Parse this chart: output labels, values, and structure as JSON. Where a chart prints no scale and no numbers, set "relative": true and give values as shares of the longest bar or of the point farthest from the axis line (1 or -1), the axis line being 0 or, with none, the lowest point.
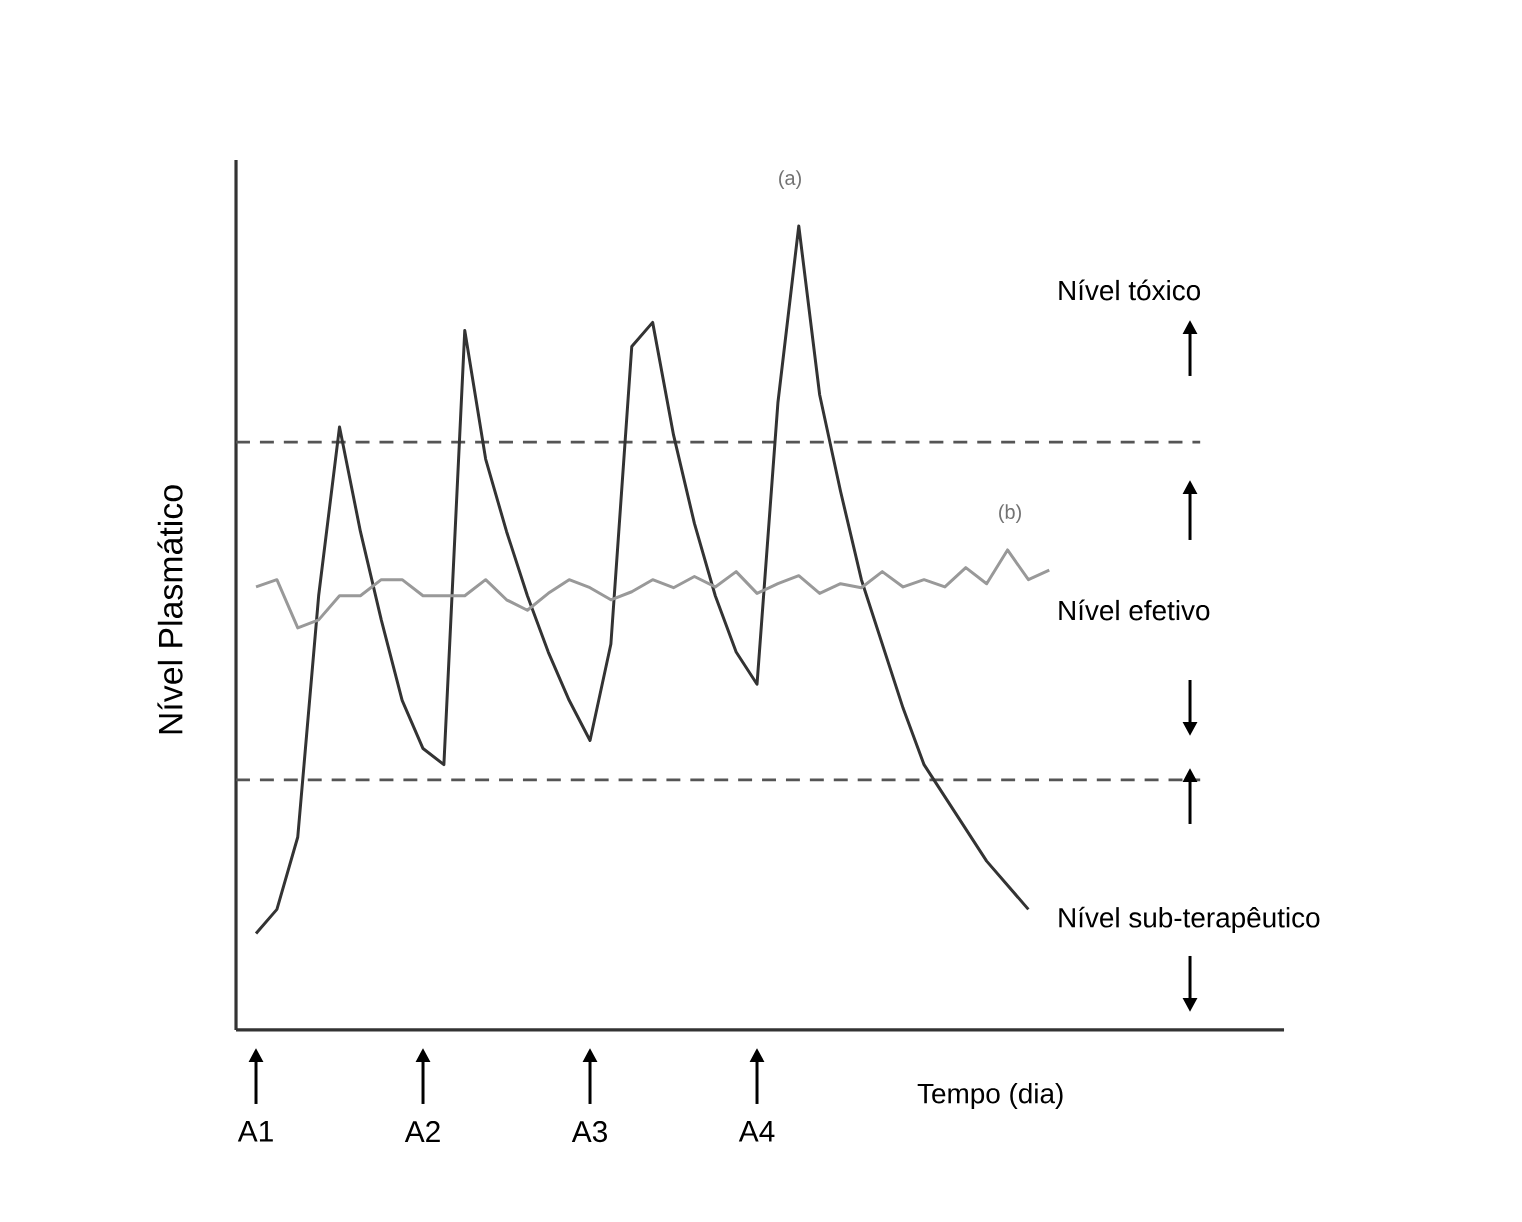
{
  "chart_data": {
    "type": "line",
    "relative": true,
    "xlabel": "Tempo (dia)",
    "ylabel": "Nível Plasmático",
    "categories": [
      "A1",
      null,
      null,
      null,
      null,
      null,
      null,
      null,
      "A2",
      null,
      null,
      null,
      null,
      null,
      null,
      null,
      "A3",
      null,
      null,
      null,
      null,
      null,
      null,
      null,
      "A4",
      null,
      null,
      null,
      null,
      null,
      null,
      null,
      null,
      null,
      null,
      null,
      null,
      null,
      null
    ],
    "tick_labels": "x",
    "grid": false,
    "marker": "none",
    "line_style": "solid",
    "series": [
      {
        "color": "#333333",
        "values": [
          0.12,
          0.15,
          0.24,
          0.54,
          0.75,
          0.62,
          0.51,
          0.41,
          0.35,
          0.33,
          0.87,
          0.71,
          0.62,
          0.54,
          0.47,
          0.41,
          0.36,
          0.48,
          0.85,
          0.88,
          0.74,
          0.63,
          0.54,
          0.47,
          0.43,
          0.78,
          1,
          0.79,
          0.67,
          0.56,
          0.48,
          0.4,
          0.33,
          0.29,
          0.25,
          0.21,
          0.18,
          0.15,
          null
        ]
      },
      {
        "color": "#999999",
        "values": [
          0.551,
          0.56,
          0.5,
          0.51,
          0.54,
          0.54,
          0.56,
          0.56,
          0.54,
          0.54,
          0.54,
          0.56,
          0.535,
          0.522,
          0.543,
          0.56,
          0.55,
          0.535,
          0.545,
          0.56,
          0.55,
          0.564,
          0.551,
          0.57,
          0.543,
          0.555,
          0.565,
          0.543,
          0.555,
          0.55,
          0.57,
          0.551,
          0.56,
          0.551,
          0.575,
          0.555,
          0.597,
          0.56,
          0.572
        ]
      }
    ],
    "ref_lines": [
      {
        "axis": "y",
        "value": 0.731,
        "line_style": "dashed",
        "color": "#555555"
      },
      {
        "axis": "y",
        "value": 0.311,
        "line_style": "dashed",
        "color": "#555555"
      }
    ],
    "annotations": [
      "(a)",
      "(b)",
      "Nível tóxico",
      "Nível efetivo",
      "Nível sub-terapêutico"
    ]
  }
}
